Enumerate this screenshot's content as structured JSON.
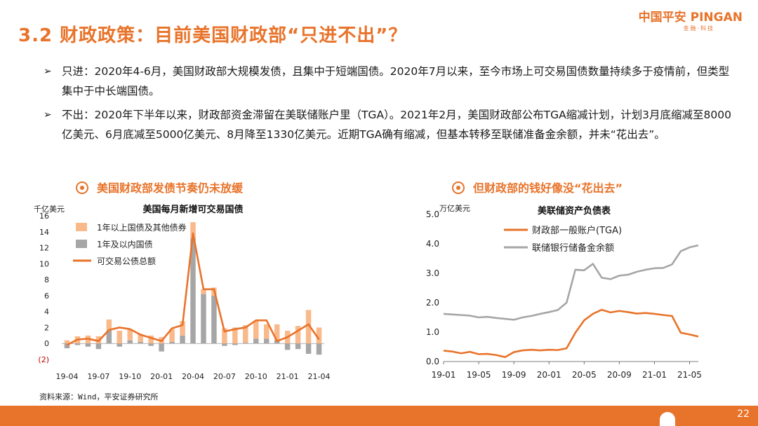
{
  "header": {
    "title": "3.2 财政政策：目前美国财政部“只进不出”？",
    "brand_cn": "中国平安",
    "brand_en": "PINGAN",
    "brand_sub": "金融·科技",
    "accent": "#e8732a"
  },
  "bullets": [
    {
      "lead": "只进：",
      "text": "2020年4-6月，美国财政部大规模发债，且集中于短端国债。2020年7月以来，至今市场上可交易国债数量持续多于疫情前，但类型集中于中长端国债。"
    },
    {
      "lead": "不出：",
      "text": "2020年下半年以来，财政部资金滞留在美联储账户里（TGA）。2021年2月，美国财政部公布TGA缩减计划，计划3月底缩减至8000亿美元、6月底减至5000亿美元、8月降至1330亿美元。近期TGA确有缩减，但基本转移至联储准备金余额，并未“花出去”。"
    }
  ],
  "sections": [
    {
      "label": "美国财政部发债节奏仍未放缓"
    },
    {
      "label": "但财政部的钱好像没“花出去”"
    }
  ],
  "source": "资料来源：Wind，平安证券研究所",
  "page_number": "22",
  "chart_data": [
    {
      "type": "bar",
      "title": "美国每月新增可交易国债",
      "ylabel": "千亿美元",
      "ylim": [
        -2,
        16
      ],
      "yticks": [
        "(2)",
        "0",
        "2",
        "4",
        "6",
        "8",
        "10",
        "12",
        "14",
        "16"
      ],
      "xtick_labels": [
        "19-04",
        "19-07",
        "19-10",
        "20-01",
        "20-04",
        "20-07",
        "20-10",
        "21-01",
        "21-04"
      ],
      "categories": [
        "19-04",
        "19-05",
        "19-06",
        "19-07",
        "19-08",
        "19-09",
        "19-10",
        "19-11",
        "19-12",
        "20-01",
        "20-02",
        "20-03",
        "20-04",
        "20-05",
        "20-06",
        "20-07",
        "20-08",
        "20-09",
        "20-10",
        "20-11",
        "20-12",
        "21-01",
        "21-02",
        "21-03",
        "21-04"
      ],
      "legend_position": "top-left",
      "series": [
        {
          "name": "1年以上国债及其他债券",
          "kind": "bar",
          "color": "#f9b98a",
          "values": [
            0.4,
            0.9,
            1.0,
            0.9,
            1.4,
            1.6,
            1.4,
            1.0,
            1.0,
            0.8,
            1.6,
            1.8,
            2.0,
            0.6,
            1.0,
            1.9,
            2.0,
            2.2,
            2.2,
            1.8,
            2.0,
            1.6,
            2.2,
            4.2,
            2.0
          ]
        },
        {
          "name": "1年及以内国债",
          "kind": "bar",
          "color": "#a6a6a6",
          "values": [
            -0.6,
            -0.2,
            -0.4,
            -0.7,
            1.6,
            -0.4,
            0.4,
            0.2,
            -0.3,
            -1.0,
            0.2,
            1.0,
            13.2,
            6.2,
            6.0,
            -0.3,
            -0.2,
            0.1,
            0.6,
            0.6,
            0.4,
            -0.8,
            -0.7,
            -1.3,
            -1.4
          ]
        },
        {
          "name": "可交易公债总额",
          "kind": "line",
          "color": "#e8732a",
          "values": [
            -0.2,
            0.5,
            0.6,
            0.3,
            1.7,
            2.0,
            1.8,
            1.1,
            0.7,
            0.3,
            1.9,
            2.3,
            13.8,
            6.8,
            6.8,
            1.5,
            1.8,
            2.0,
            2.9,
            2.9,
            0.3,
            0.8,
            1.6,
            2.4,
            0.5
          ]
        }
      ]
    },
    {
      "type": "line",
      "title": "美联储资产负债表",
      "ylabel": "万亿美元",
      "ylim": [
        0,
        5
      ],
      "yticks": [
        "0.0",
        "1.0",
        "2.0",
        "3.0",
        "4.0",
        "5.0"
      ],
      "xlim": [
        "19-01",
        "21-06"
      ],
      "xtick_labels": [
        "19-01",
        "19-05",
        "19-09",
        "20-01",
        "20-05",
        "20-09",
        "21-01",
        "21-05"
      ],
      "legend_position": "top-left",
      "series": [
        {
          "name": "财政部一般账户(TGA)",
          "color": "#e8732a",
          "x": [
            "19-01",
            "19-02",
            "19-03",
            "19-04",
            "19-05",
            "19-06",
            "19-07",
            "19-08",
            "19-09",
            "19-10",
            "19-11",
            "19-12",
            "20-01",
            "20-02",
            "20-03",
            "20-04",
            "20-05",
            "20-06",
            "20-07",
            "20-08",
            "20-09",
            "20-10",
            "20-11",
            "20-12",
            "21-01",
            "21-02",
            "21-03",
            "21-04",
            "21-05",
            "21-06"
          ],
          "values": [
            0.37,
            0.34,
            0.28,
            0.33,
            0.25,
            0.26,
            0.22,
            0.15,
            0.32,
            0.38,
            0.4,
            0.38,
            0.4,
            0.39,
            0.45,
            0.98,
            1.4,
            1.62,
            1.76,
            1.67,
            1.72,
            1.68,
            1.63,
            1.65,
            1.62,
            1.58,
            1.55,
            0.98,
            0.92,
            0.85
          ]
        },
        {
          "name": "联储银行储备金余额",
          "color": "#a6a6a6",
          "x": [
            "19-01",
            "19-02",
            "19-03",
            "19-04",
            "19-05",
            "19-06",
            "19-07",
            "19-08",
            "19-09",
            "19-10",
            "19-11",
            "19-12",
            "20-01",
            "20-02",
            "20-03",
            "20-04",
            "20-05",
            "20-06",
            "20-07",
            "20-08",
            "20-09",
            "20-10",
            "20-11",
            "20-12",
            "21-01",
            "21-02",
            "21-03",
            "21-04",
            "21-05",
            "21-06"
          ],
          "values": [
            1.62,
            1.6,
            1.58,
            1.56,
            1.5,
            1.52,
            1.48,
            1.45,
            1.42,
            1.5,
            1.55,
            1.62,
            1.68,
            1.75,
            2.0,
            3.12,
            3.1,
            3.32,
            2.85,
            2.8,
            2.92,
            2.95,
            3.05,
            3.12,
            3.17,
            3.18,
            3.3,
            3.75,
            3.88,
            3.95
          ]
        }
      ]
    }
  ]
}
